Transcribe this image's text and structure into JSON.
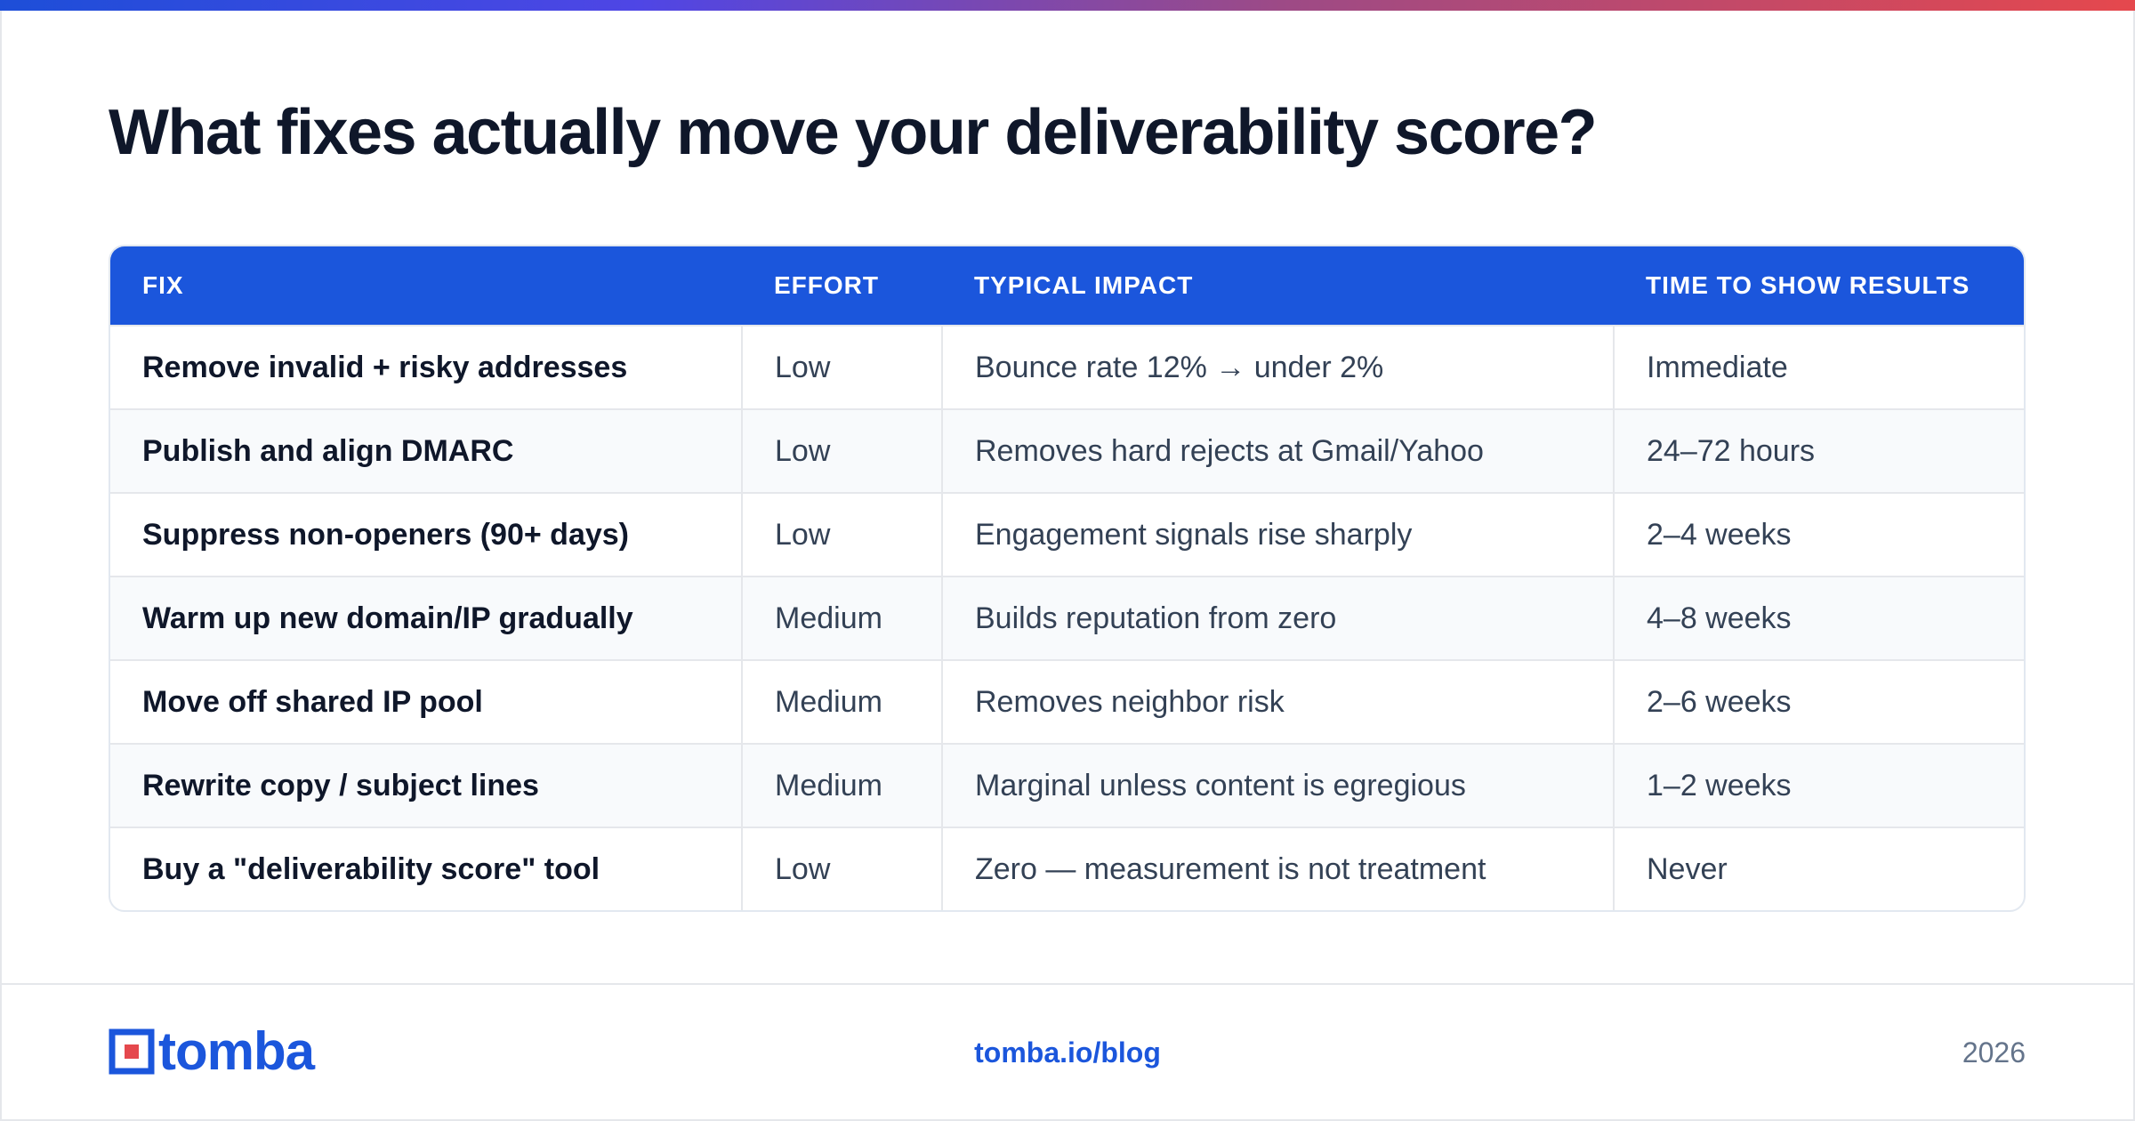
{
  "title": "What fixes actually move your deliverability score?",
  "table": {
    "headers": [
      "FIX",
      "EFFORT",
      "TYPICAL IMPACT",
      "TIME TO SHOW RESULTS"
    ],
    "rows": [
      [
        "Remove invalid + risky addresses",
        "Low",
        "Bounce rate 12% → under 2%",
        "Immediate"
      ],
      [
        "Publish and align DMARC",
        "Low",
        "Removes hard rejects at Gmail/Yahoo",
        "24–72 hours"
      ],
      [
        "Suppress non-openers (90+ days)",
        "Low",
        "Engagement signals rise sharply",
        "2–4 weeks"
      ],
      [
        "Warm up new domain/IP gradually",
        "Medium",
        "Builds reputation from zero",
        "4–8 weeks"
      ],
      [
        "Move off shared IP pool",
        "Medium",
        "Removes neighbor risk",
        "2–6 weeks"
      ],
      [
        "Rewrite copy / subject lines",
        "Medium",
        "Marginal unless content is egregious",
        "1–2 weeks"
      ],
      [
        "Buy a \"deliverability score\" tool",
        "Low",
        "Zero — measurement is not treatment",
        "Never"
      ]
    ]
  },
  "footer": {
    "logo_text": "tomba",
    "link": "tomba.io/blog",
    "year": "2026"
  },
  "colors": {
    "accent": "#1b56dc",
    "logo_red": "#e5484d",
    "title": "#0f172a"
  }
}
